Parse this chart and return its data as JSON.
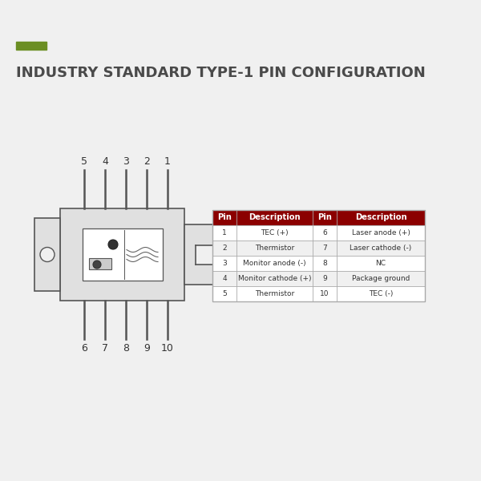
{
  "title": "INDUSTRY STANDARD TYPE-1 PIN CONFIGURATION",
  "accent_color": "#6b8e23",
  "title_color": "#4a4a4a",
  "bg_color": "#f0f0f0",
  "table_header_color": "#8b0000",
  "table_header_text": "#ffffff",
  "table_row_bg1": "#ffffff",
  "table_row_bg2": "#f0f0f0",
  "table_border_color": "#aaaaaa",
  "table_text_color": "#333333",
  "diode_body_color": "#e0e0e0",
  "diode_line_color": "#555555",
  "pin_labels_top": [
    "5",
    "4",
    "3",
    "2",
    "1"
  ],
  "pin_labels_bottom": [
    "6",
    "7",
    "8",
    "9",
    "10"
  ],
  "pin_data": [
    {
      "pin": "1",
      "desc": "TEC (+)",
      "pin2": "6",
      "desc2": "Laser anode (+)"
    },
    {
      "pin": "2",
      "desc": "Thermistor",
      "pin2": "7",
      "desc2": "Laser cathode (-)"
    },
    {
      "pin": "3",
      "desc": "Monitor anode (-)",
      "pin2": "8",
      "desc2": "NC"
    },
    {
      "pin": "4",
      "desc": "Monitor cathode (+)",
      "pin2": "9",
      "desc2": "Package ground"
    },
    {
      "pin": "5",
      "desc": "Thermistor",
      "pin2": "10",
      "desc2": "TEC (-)"
    }
  ]
}
